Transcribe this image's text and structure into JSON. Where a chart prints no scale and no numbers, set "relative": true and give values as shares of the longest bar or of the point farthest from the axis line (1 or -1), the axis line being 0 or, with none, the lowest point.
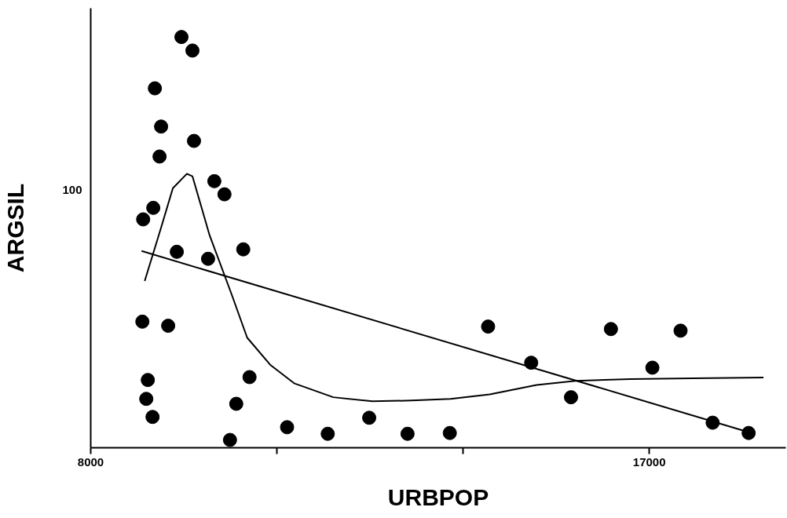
{
  "chart_data": {
    "type": "scatter",
    "xlabel": "URBPOP",
    "ylabel": "ARGSIL",
    "relative": true,
    "xlim": [
      8000,
      19200
    ],
    "xticks": [
      8000,
      {
        "value": 11000,
        "label": null
      },
      {
        "value": 14000,
        "label": null
      },
      17000
    ],
    "grid": false,
    "annotations": [
      "100"
    ],
    "series": [
      {
        "marker": "circle",
        "color": "#000000",
        "x": [
          8845,
          8832,
          8920,
          8895,
          8996,
          9008,
          9034,
          9134,
          9109,
          9248,
          9387,
          9462,
          9639,
          9664,
          9891,
          9992,
          10155,
          10244,
          10345,
          10458,
          10559,
          11164,
          11819,
          12487,
          13105,
          13786,
          14403,
          15097,
          15739,
          16382,
          17050,
          17504,
          18021,
          18601
        ],
        "values": [
          0.556,
          0.307,
          0.165,
          0.119,
          0.075,
          0.584,
          0.875,
          0.782,
          0.709,
          0.297,
          0.477,
          1.0,
          0.967,
          0.747,
          0.46,
          0.649,
          0.617,
          0.019,
          0.107,
          0.483,
          0.172,
          0.05,
          0.034,
          0.073,
          0.034,
          0.036,
          0.295,
          0.207,
          0.123,
          0.289,
          0.195,
          0.285,
          0.061,
          0.036
        ]
      },
      {
        "type": "line",
        "color": "#000000",
        "x": [
          8870,
          9134,
          9324,
          9550,
          9639,
          9916,
          10269,
          10521,
          10899,
          11277,
          11908,
          12538,
          13168,
          13798,
          14429,
          15185,
          15815,
          16697,
          17706,
          18840
        ],
        "values": [
          0.406,
          0.536,
          0.632,
          0.667,
          0.661,
          0.517,
          0.374,
          0.268,
          0.201,
          0.157,
          0.123,
          0.113,
          0.115,
          0.119,
          0.13,
          0.153,
          0.163,
          0.167,
          0.169,
          0.171
        ]
      },
      {
        "type": "line",
        "color": "#000000",
        "x": [
          8819,
          18689
        ],
        "values": [
          0.479,
          0.034
        ]
      }
    ]
  }
}
